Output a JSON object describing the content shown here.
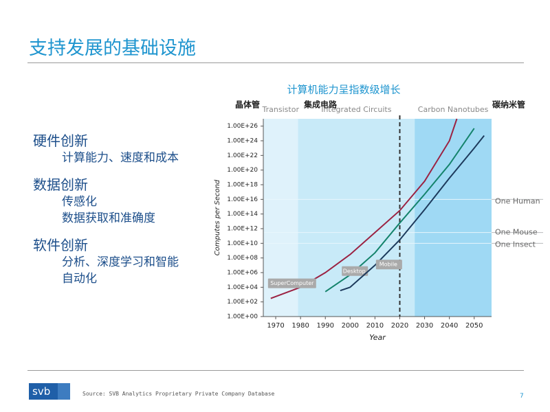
{
  "slide": {
    "title": "支持发展的基础设施",
    "sections": [
      {
        "heading": "硬件创新",
        "items": [
          "计算能力、速度和成本"
        ]
      },
      {
        "heading": "数据创新",
        "items": [
          "传感化",
          "数据获取和准确度"
        ]
      },
      {
        "heading": "软件创新",
        "items": [
          "分析、深度学习和智能",
          "自动化"
        ]
      }
    ],
    "logo": "svb",
    "source": "Source: SVB Analytics Proprietary Private Company Database",
    "page_number": "7"
  },
  "chart_data": {
    "type": "line",
    "title": "计算机能力呈指数级增长",
    "xlabel": "Year",
    "ylabel": "Computes per Second",
    "log_scale": true,
    "xlim": [
      1965,
      2057
    ],
    "ylim": [
      1,
      1e+27
    ],
    "xticks": [
      1970,
      1980,
      1990,
      2000,
      2010,
      2020,
      2030,
      2040,
      2050
    ],
    "yticks": [
      {
        "value": 1,
        "label": "1.00E+00"
      },
      {
        "value": 100.0,
        "label": "1.00E+02"
      },
      {
        "value": 10000.0,
        "label": "1.00E+04"
      },
      {
        "value": 1000000.0,
        "label": "1.00E+06"
      },
      {
        "value": 100000000.0,
        "label": "1.00E+08"
      },
      {
        "value": 10000000000.0,
        "label": "1.00E+10"
      },
      {
        "value": 1000000000000.0,
        "label": "1.00E+12"
      },
      {
        "value": 100000000000000.0,
        "label": "1.00E+14"
      },
      {
        "value": 1e+16,
        "label": "1.00E+16"
      },
      {
        "value": 1e+18,
        "label": "1.00E+18"
      },
      {
        "value": 1e+20,
        "label": "1.00E+20"
      },
      {
        "value": 1e+22,
        "label": "1.00E+22"
      },
      {
        "value": 1e+24,
        "label": "1.00E+24"
      },
      {
        "value": 1e+26,
        "label": "1.00E+26"
      }
    ],
    "bands": [
      {
        "label": "Transistor",
        "from": 1965,
        "to": 1979,
        "color": "#dff2fb"
      },
      {
        "label": "Integrated Circuits",
        "from": 1979,
        "to": 2026,
        "color": "#c8eaf8"
      },
      {
        "label": "Carbon Nanotubes",
        "from": 2026,
        "to": 2057,
        "color": "#9fd9f4"
      }
    ],
    "band_labels_zh": [
      "晶体管",
      "集成电路",
      "碳纳米管"
    ],
    "marker_x": 2020,
    "reference_lines": [
      {
        "label": "One Human",
        "value": 1e+16
      },
      {
        "label": "One Mouse",
        "value": 300000000000.0
      },
      {
        "label": "One Insect",
        "value": 10000000000.0
      }
    ],
    "series": [
      {
        "name": "SuperComputer",
        "color": "#9b2242",
        "x": [
          1968,
          1980,
          1990,
          2000,
          2010,
          2020,
          2030,
          2040,
          2043
        ],
        "values": [
          300,
          10000,
          1000000.0,
          300000000.0,
          300000000000.0,
          300000000000000.0,
          3e+18,
          1e+24,
          1e+27
        ]
      },
      {
        "name": "Desktop",
        "color": "#14836b",
        "x": [
          1990,
          2000,
          2010,
          2020,
          2030,
          2040,
          2050
        ],
        "values": [
          2500,
          500000.0,
          500000000.0,
          6000000000000.0,
          5e+16,
          6e+20,
          5e+25
        ]
      },
      {
        "name": "Mobile",
        "color": "#1d3a5c",
        "x": [
          1996,
          2000,
          2010,
          2020,
          2030,
          2040,
          2050,
          2054
        ],
        "values": [
          3500,
          10000,
          10000000.0,
          30000000000.0,
          400000000000000.0,
          8e+18,
          1e+23,
          5e+24
        ]
      }
    ]
  }
}
